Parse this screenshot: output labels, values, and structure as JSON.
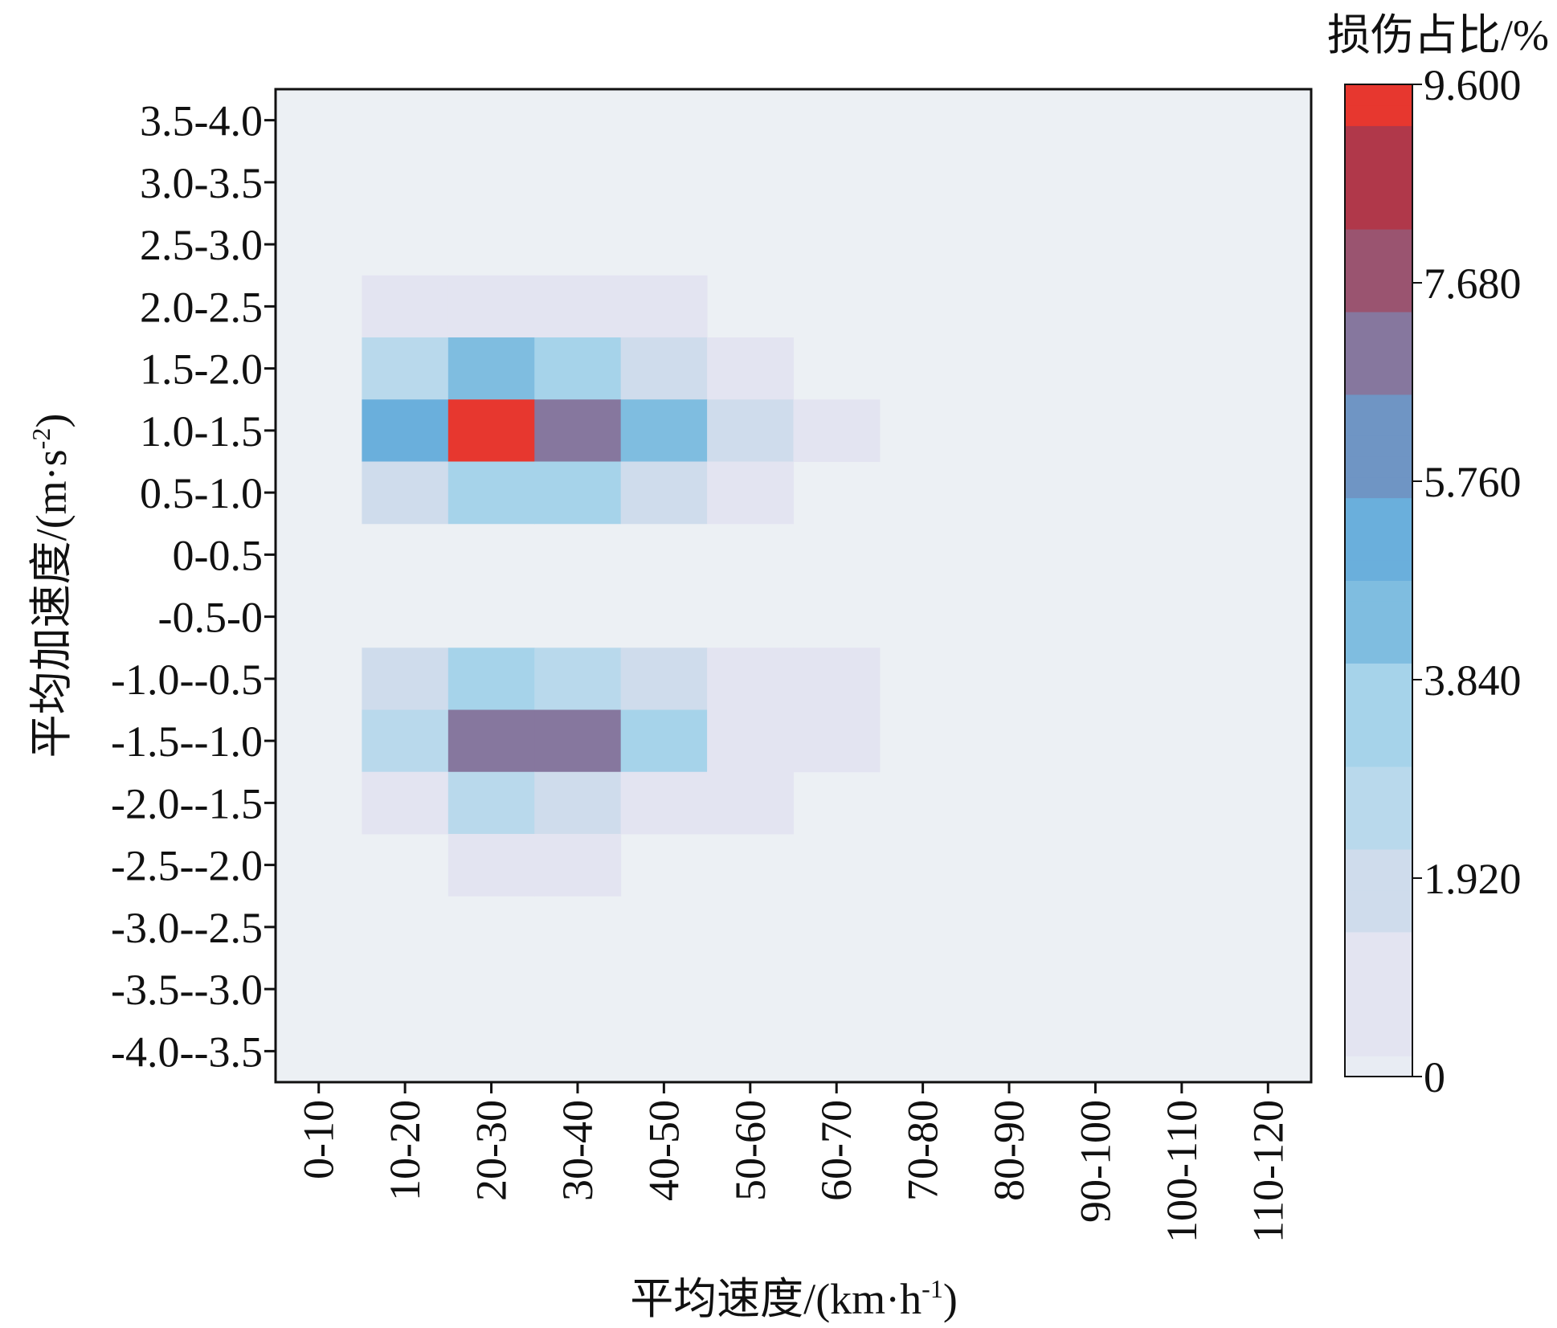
{
  "chart_data": {
    "type": "heatmap",
    "xlabel_main": "平均速度/(km·h",
    "xlabel_sup": "-1",
    "xlabel_close": ")",
    "ylabel_main": "平均加速度/(m·s",
    "ylabel_sup": "-2",
    "ylabel_close": ")",
    "colorbar_title": "损伤占比/%",
    "x_categories": [
      "0-10",
      "10-20",
      "20-30",
      "30-40",
      "40-50",
      "50-60",
      "60-70",
      "70-80",
      "80-90",
      "90-100",
      "100-110",
      "110-120"
    ],
    "y_categories": [
      "3.5-4.0",
      "3.0-3.5",
      "2.5-3.0",
      "2.0-2.5",
      "1.5-2.0",
      "1.0-1.5",
      "0.5-1.0",
      "0-0.5",
      "-0.5-0",
      "-1.0--0.5",
      "-1.5--1.0",
      "-2.0--1.5",
      "-2.5--2.0",
      "-3.0--2.5",
      "-3.5--3.0",
      "-4.0--3.5"
    ],
    "values": [
      [
        0,
        0,
        0,
        0,
        0,
        0,
        0,
        0,
        0,
        0,
        0,
        0
      ],
      [
        0,
        0,
        0,
        0,
        0,
        0,
        0,
        0,
        0,
        0,
        0,
        0
      ],
      [
        0,
        0,
        0,
        0,
        0,
        0,
        0,
        0,
        0,
        0,
        0,
        0
      ],
      [
        0,
        0.3,
        0.9,
        0.9,
        0.3,
        0,
        0,
        0,
        0,
        0,
        0,
        0
      ],
      [
        0,
        2.7,
        4.0,
        3.4,
        2.0,
        0.8,
        0,
        0,
        0,
        0,
        0,
        0
      ],
      [
        0,
        5.0,
        9.6,
        7.2,
        4.0,
        1.4,
        0.3,
        0,
        0,
        0,
        0,
        0
      ],
      [
        0,
        2.1,
        3.3,
        3.1,
        1.7,
        0.7,
        0,
        0,
        0,
        0,
        0,
        0
      ],
      [
        0,
        0,
        0,
        0,
        0,
        0,
        0,
        0,
        0,
        0,
        0,
        0
      ],
      [
        0,
        0,
        0,
        0,
        0,
        0,
        0,
        0,
        0,
        0,
        0,
        0
      ],
      [
        0,
        1.4,
        3.3,
        2.7,
        1.7,
        0.7,
        0.3,
        0,
        0,
        0,
        0,
        0
      ],
      [
        0,
        2.6,
        7.4,
        7.0,
        3.4,
        1.1,
        0.3,
        0,
        0,
        0,
        0,
        0
      ],
      [
        0,
        0.6,
        2.5,
        2.1,
        1.1,
        0.4,
        0,
        0,
        0,
        0,
        0,
        0
      ],
      [
        0,
        0,
        0.3,
        0.3,
        0,
        0,
        0,
        0,
        0,
        0,
        0,
        0
      ],
      [
        0,
        0,
        0,
        0,
        0,
        0,
        0,
        0,
        0,
        0,
        0,
        0
      ],
      [
        0,
        0,
        0,
        0,
        0,
        0,
        0,
        0,
        0,
        0,
        0,
        0
      ],
      [
        0,
        0,
        0,
        0,
        0,
        0,
        0,
        0,
        0,
        0,
        0,
        0
      ]
    ],
    "colorbar_range": [
      0,
      9.6
    ],
    "colorbar_ticks": [
      "0",
      "1.920",
      "3.840",
      "5.760",
      "7.680",
      "9.600"
    ],
    "colorbar_tick_values": [
      0,
      1.92,
      3.84,
      5.76,
      7.68,
      9.6
    ],
    "colorscale": [
      "#e8ecf3",
      "#e3e4f1",
      "#cfdcec",
      "#b9d9ec",
      "#a6d3ea",
      "#7fbde0",
      "#6aafdc",
      "#6f95c4",
      "#86779e",
      "#9a5470",
      "#b0384a",
      "#e7372f"
    ],
    "background_color": "#ecf0f4",
    "grid": false
  }
}
